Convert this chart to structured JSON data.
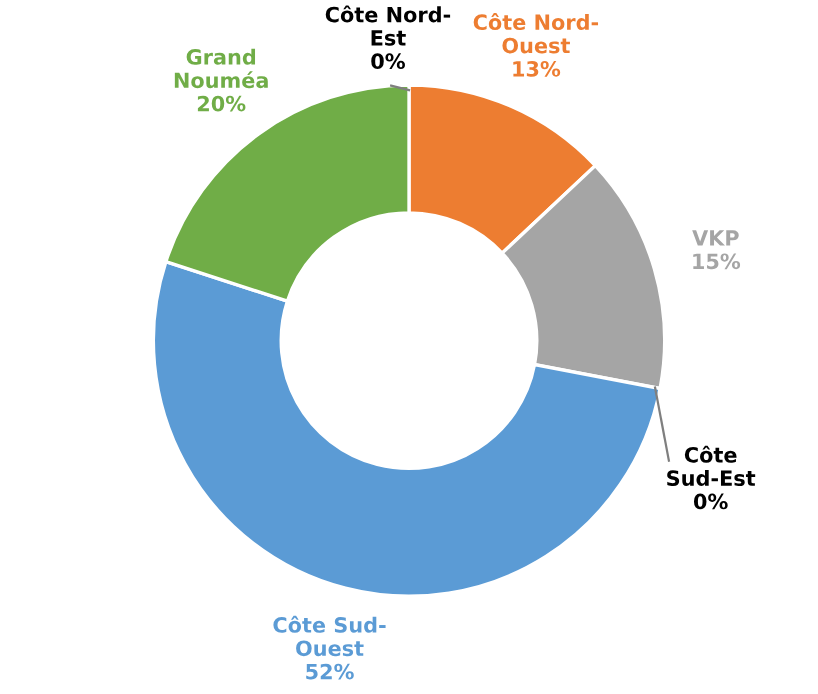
{
  "chart_data": {
    "type": "donut",
    "categories": [
      "Côte Nord-\nOuest",
      "VKP",
      "Côte\nSud-Est",
      "Côte Sud-\nOuest",
      "Grand\nNouméa",
      "Côte Nord-\nEst"
    ],
    "values": [
      13,
      15,
      0,
      52,
      20,
      0
    ],
    "colors": [
      "#ed7d31",
      "#a5a5a5",
      "#000000",
      "#5b9bd5",
      "#70ad47",
      "#000000"
    ],
    "value_labels": [
      "13%",
      "15%",
      "0%",
      "52%",
      "20%",
      "0%"
    ],
    "legend": false
  }
}
